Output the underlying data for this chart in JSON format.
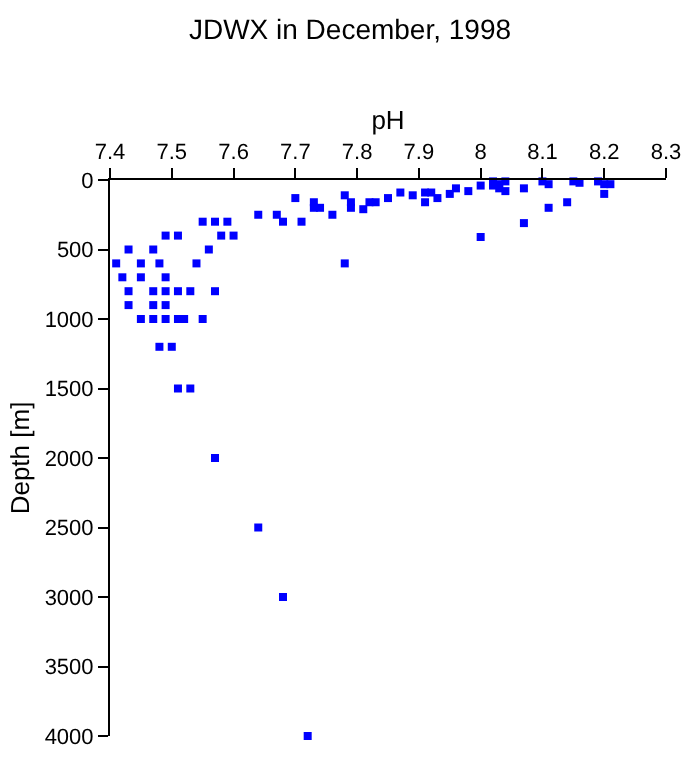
{
  "chart_data": {
    "type": "scatter",
    "title": "JDWX in December, 1998",
    "xlabel": "pH",
    "ylabel": "Depth [m]",
    "x": [
      7.41,
      7.42,
      7.43,
      7.43,
      7.43,
      7.45,
      7.45,
      7.45,
      7.47,
      7.47,
      7.47,
      7.47,
      7.48,
      7.49,
      7.49,
      7.49,
      7.49,
      7.49,
      7.48,
      7.5,
      7.51,
      7.51,
      7.51,
      7.52,
      7.53,
      7.51,
      7.53,
      7.54,
      7.55,
      7.55,
      7.56,
      7.57,
      7.57,
      7.58,
      7.59,
      7.6,
      7.57,
      7.64,
      7.67,
      7.68,
      7.7,
      7.71,
      7.73,
      7.73,
      7.74,
      7.76,
      7.78,
      7.79,
      7.79,
      7.78,
      7.64,
      7.68,
      7.72,
      7.81,
      7.82,
      7.83,
      7.85,
      7.87,
      7.89,
      7.91,
      7.91,
      7.92,
      7.93,
      7.95,
      7.96,
      7.98,
      8.0,
      8.0,
      8.02,
      8.02,
      8.03,
      8.04,
      8.04,
      8.03,
      8.07,
      8.07,
      8.1,
      8.11,
      8.11,
      8.14,
      8.15,
      8.16,
      8.19,
      8.2,
      8.2,
      8.21
    ],
    "values": [
      600,
      700,
      500,
      800,
      900,
      600,
      700,
      1000,
      500,
      800,
      900,
      1000,
      600,
      400,
      700,
      800,
      900,
      1000,
      1200,
      1200,
      400,
      800,
      1000,
      1000,
      800,
      1500,
      1500,
      600,
      300,
      1000,
      500,
      300,
      800,
      400,
      300,
      400,
      2000,
      250,
      250,
      300,
      130,
      300,
      160,
      200,
      200,
      250,
      110,
      160,
      200,
      600,
      2500,
      3000,
      4000,
      210,
      160,
      160,
      130,
      90,
      110,
      90,
      160,
      90,
      130,
      100,
      60,
      80,
      40,
      410,
      10,
      40,
      30,
      10,
      80,
      60,
      60,
      310,
      10,
      30,
      200,
      160,
      10,
      20,
      10,
      30,
      100,
      30
    ],
    "color": "#0000ff",
    "marker": "square",
    "xlim": [
      7.4,
      8.3
    ],
    "xticks": [
      7.4,
      7.5,
      7.6,
      7.7,
      7.8,
      7.9,
      8,
      8.1,
      8.2,
      8.3
    ],
    "ylim": [
      4000,
      0
    ],
    "yticks": [
      0,
      500,
      1000,
      1500,
      2000,
      2500,
      3000,
      3500,
      4000
    ],
    "legend": false
  }
}
